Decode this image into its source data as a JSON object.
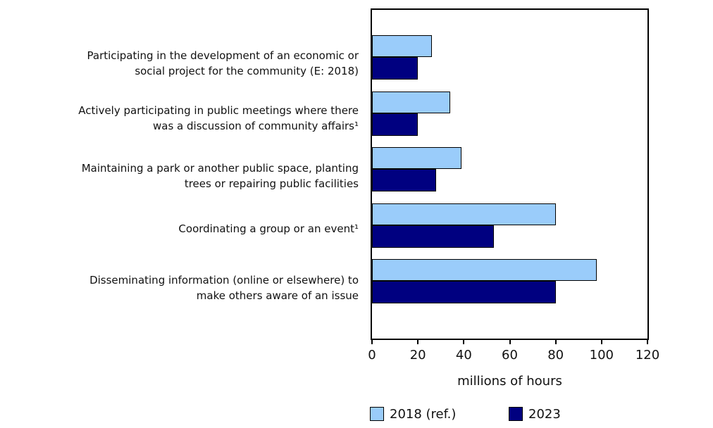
{
  "chart_data": {
    "type": "bar",
    "orientation": "horizontal",
    "title": "",
    "xlabel": "millions of hours",
    "ylabel": "",
    "xlim": [
      0,
      120
    ],
    "xticks": [
      0,
      20,
      40,
      60,
      80,
      100,
      120
    ],
    "grid": false,
    "legend_position": "bottom",
    "categories": [
      "Participating in the development of an economic or\nsocial project for the community (E: 2018)",
      "Actively participating in public meetings where there\nwas a discussion of community affairs¹",
      "Maintaining a park or another public space, planting\ntrees or repairing public facilities",
      "Coordinating a group or an event¹",
      "Disseminating information (online or elsewhere) to\nmake others aware of an issue"
    ],
    "series": [
      {
        "name": "2018 (ref.)",
        "color": "#9ACCFA",
        "values": [
          26,
          34,
          39,
          80,
          98
        ]
      },
      {
        "name": "2023",
        "color": "#000080",
        "values": [
          20,
          20,
          28,
          53,
          80
        ]
      }
    ],
    "colors": {
      "bar_outline": "#000000",
      "axis": "#000000",
      "text": "#111111",
      "background": "#ffffff"
    }
  }
}
